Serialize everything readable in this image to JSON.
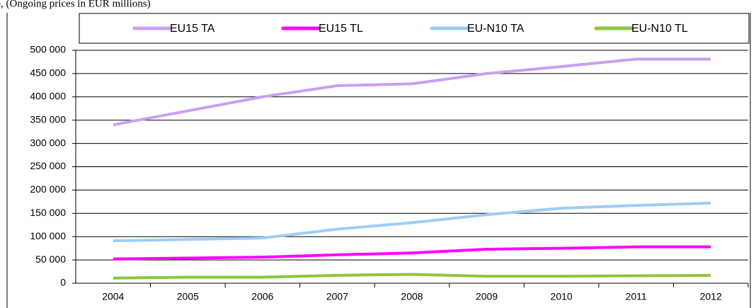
{
  "chart_data": {
    "type": "line",
    "caption": "), (Ongoing prices in EUR millions)",
    "categories": [
      "2004",
      "2005",
      "2006",
      "2007",
      "2008",
      "2009",
      "2010",
      "2011",
      "2012"
    ],
    "series": [
      {
        "name": "EU15 TA",
        "color": "#c9a0f0",
        "values": [
          340000,
          370000,
          400000,
          424000,
          428000,
          450000,
          465000,
          481000,
          481000
        ]
      },
      {
        "name": "EU15 TL",
        "color": "#ff00ff",
        "values": [
          52000,
          54000,
          56000,
          61000,
          65000,
          73000,
          75000,
          78000,
          78000
        ]
      },
      {
        "name": "EU-N10 TA",
        "color": "#9dcdf7",
        "values": [
          91000,
          94000,
          97000,
          116000,
          130000,
          147000,
          161000,
          167000,
          172000
        ]
      },
      {
        "name": "EU-N10 TL",
        "color": "#8cc63f",
        "values": [
          11000,
          13000,
          13000,
          17000,
          19000,
          15000,
          15000,
          16000,
          17000
        ]
      }
    ],
    "ylim": [
      0,
      500000
    ],
    "yticks": [
      {
        "value": 0,
        "label": "0"
      },
      {
        "value": 50000,
        "label": "50 000"
      },
      {
        "value": 100000,
        "label": "100 000"
      },
      {
        "value": 150000,
        "label": "150 000"
      },
      {
        "value": 200000,
        "label": "200 000"
      },
      {
        "value": 250000,
        "label": "250 000"
      },
      {
        "value": 300000,
        "label": "300 000"
      },
      {
        "value": 350000,
        "label": "350 000"
      },
      {
        "value": 400000,
        "label": "400 000"
      },
      {
        "value": 450000,
        "label": "450 000"
      },
      {
        "value": 500000,
        "label": "500 000"
      }
    ],
    "grid": true,
    "legend": "top"
  }
}
